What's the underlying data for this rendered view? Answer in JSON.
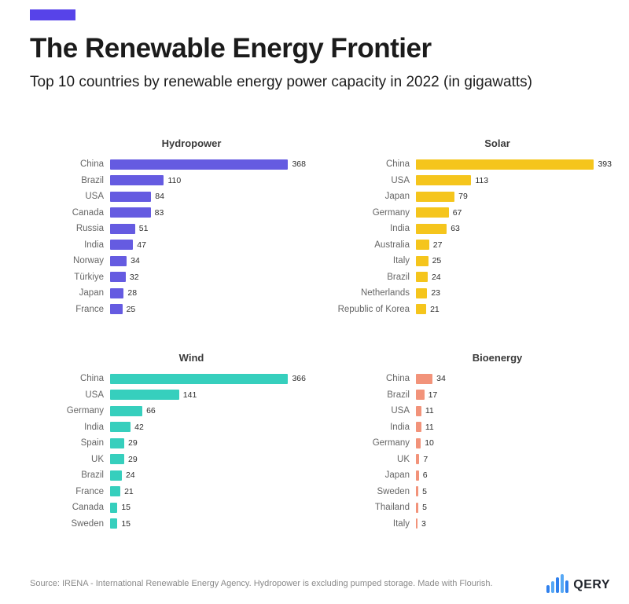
{
  "header": {
    "title": "The Renewable Energy Frontier",
    "subtitle": "Top 10 countries by renewable energy power capacity in 2022 (in gigawatts)"
  },
  "footer": {
    "source": "Source: IRENA - International Renewable Energy Agency. Hydropower is excluding pumped storage. Made with Flourish.",
    "logo_text": "QERY"
  },
  "colors": {
    "accent": "#5743E9",
    "hydropower": "#655BE1",
    "solar": "#F5C51C",
    "wind": "#36CFBD",
    "bioenergy": "#F2937A",
    "logo_blue": "#2F80ED",
    "logo_blue_light": "#56A8F5"
  },
  "chart_data": {
    "type": "bar",
    "orientation": "horizontal",
    "unit": "gigawatts",
    "year": "2022",
    "x_max": 400,
    "grid": false,
    "legend": "none",
    "panels": [
      {
        "title": "Hydropower",
        "color": "#655BE1",
        "categories": [
          "China",
          "Brazil",
          "USA",
          "Canada",
          "Russia",
          "India",
          "Norway",
          "Türkiye",
          "Japan",
          "France"
        ],
        "values": [
          368,
          110,
          84,
          83,
          51,
          47,
          34,
          32,
          28,
          25
        ]
      },
      {
        "title": "Solar",
        "color": "#F5C51C",
        "categories": [
          "China",
          "USA",
          "Japan",
          "Germany",
          "India",
          "Australia",
          "Italy",
          "Brazil",
          "Netherlands",
          "Republic of Korea"
        ],
        "values": [
          393,
          113,
          79,
          67,
          63,
          27,
          25,
          24,
          23,
          21
        ]
      },
      {
        "title": "Wind",
        "color": "#36CFBD",
        "categories": [
          "China",
          "USA",
          "Germany",
          "India",
          "Spain",
          "UK",
          "Brazil",
          "France",
          "Canada",
          "Sweden"
        ],
        "values": [
          366,
          141,
          66,
          42,
          29,
          29,
          24,
          21,
          15,
          15
        ]
      },
      {
        "title": "Bioenergy",
        "color": "#F2937A",
        "categories": [
          "China",
          "Brazil",
          "USA",
          "India",
          "Germany",
          "UK",
          "Japan",
          "Sweden",
          "Thailand",
          "Italy"
        ],
        "values": [
          34,
          17,
          11,
          11,
          10,
          7,
          6,
          5,
          5,
          3
        ]
      }
    ],
    "logo_bar_heights": [
      10,
      15,
      20,
      24,
      16
    ]
  }
}
